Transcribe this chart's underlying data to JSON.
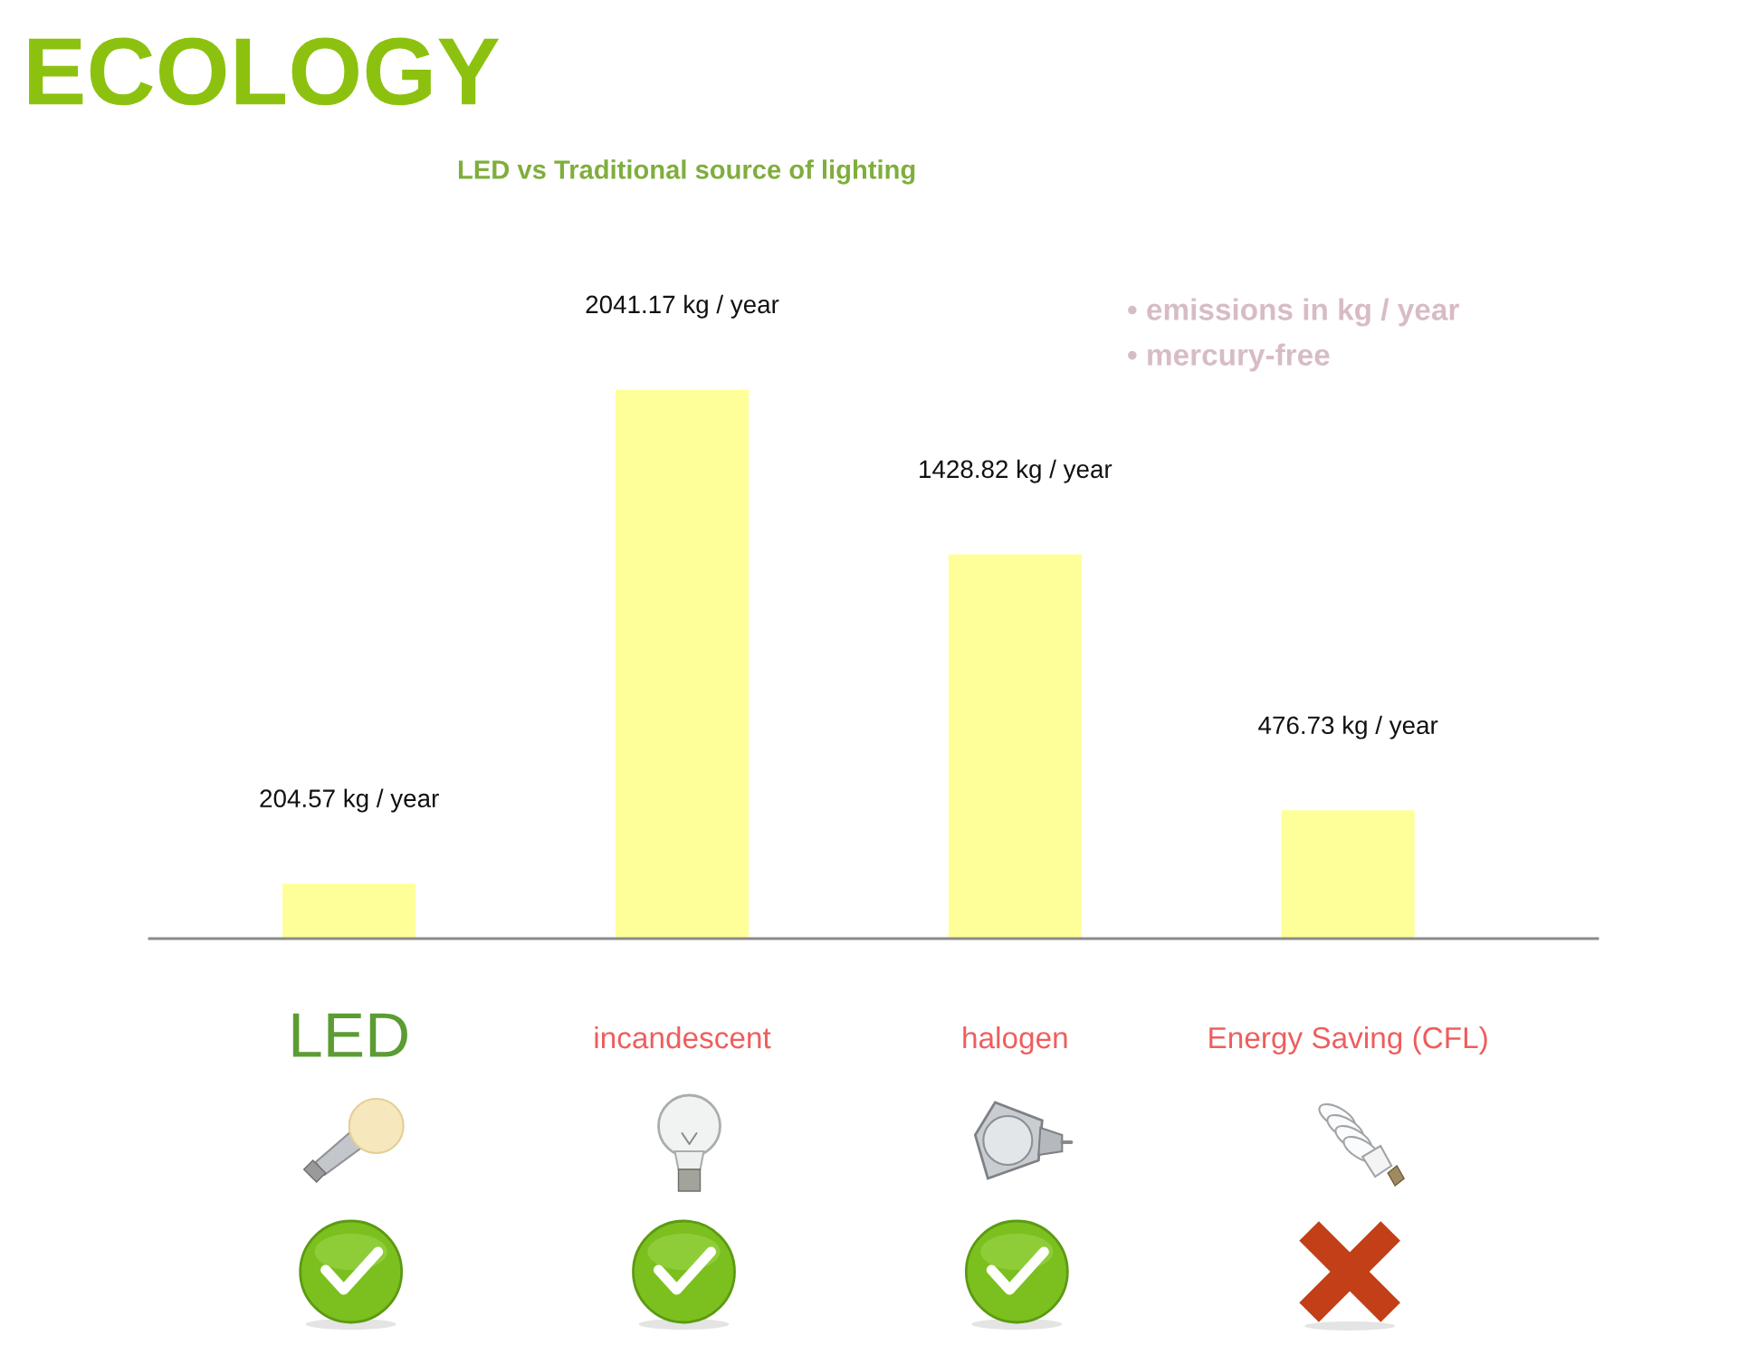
{
  "chart_data": {
    "type": "bar",
    "title": "ECOLOGY",
    "subtitle": "LED vs Traditional source of lighting",
    "categories": [
      "LED",
      "incandescent",
      "halogen",
      "Energy Saving (CFL)"
    ],
    "values": [
      204.57,
      2041.17,
      1428.82,
      476.73
    ],
    "value_labels": [
      "204.57 kg / year",
      "2041.17 kg / year",
      "1428.82 kg / year",
      "476.73 kg / year"
    ],
    "color": "#ffff99",
    "annotations": [
      "• emissions in kg / year",
      "• mercury-free"
    ],
    "tick_labels": "x",
    "grid": false
  }
}
